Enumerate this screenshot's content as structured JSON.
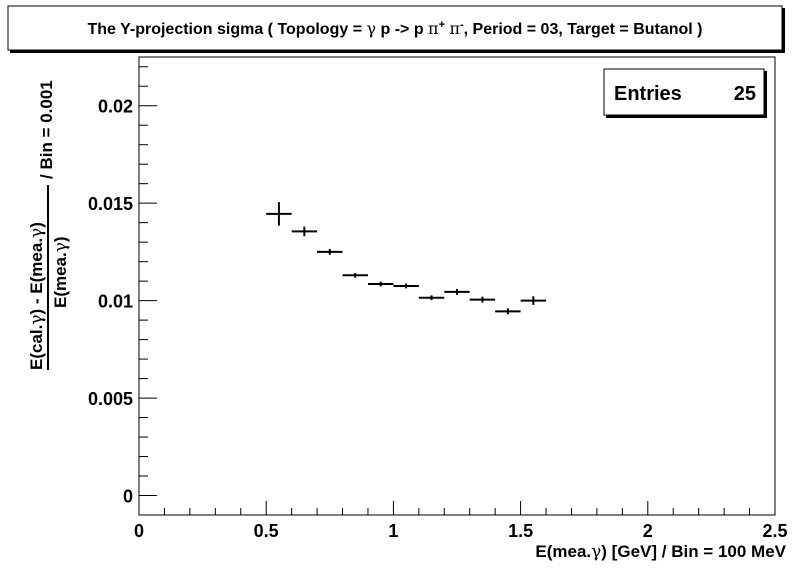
{
  "title": {
    "parts": [
      {
        "text": "The Y-projection sigma ( Topology = ",
        "symbol": false
      },
      {
        "text": "γ",
        "symbol": true
      },
      {
        "text": " p -> p ",
        "symbol": false
      },
      {
        "text": "π",
        "symbol": true
      },
      {
        "text": "+",
        "sup": true
      },
      {
        "text": " ",
        "symbol": false
      },
      {
        "text": "π",
        "symbol": true
      },
      {
        "text": "-",
        "sup": true
      },
      {
        "text": ", Period = 03, Target = Butanol )",
        "symbol": false
      }
    ]
  },
  "stats": {
    "label": "Entries",
    "value": "25"
  },
  "chart_data": {
    "type": "scatter",
    "title": "The Y-projection sigma ( Topology = γ p -> p π+ π-, Period = 03, Target = Butanol )",
    "xlabel": "E(mea. γ) [GeV] / Bin = 100 MeV",
    "ylabel": "(E(cal. γ) - E(mea. γ)) / E(mea. γ) / Bin = 0.001",
    "xlim": [
      0,
      2.5
    ],
    "ylim": [
      -0.001,
      0.0225
    ],
    "x_ticks": [
      {
        "value": 0,
        "label": "0"
      },
      {
        "value": 0.5,
        "label": "0.5"
      },
      {
        "value": 1,
        "label": "1"
      },
      {
        "value": 1.5,
        "label": "1.5"
      },
      {
        "value": 2,
        "label": "2"
      },
      {
        "value": 2.5,
        "label": "2.5"
      }
    ],
    "y_ticks": [
      {
        "value": 0,
        "label": "0"
      },
      {
        "value": 0.005,
        "label": "0.005"
      },
      {
        "value": 0.01,
        "label": "0.01"
      },
      {
        "value": 0.015,
        "label": "0.015"
      },
      {
        "value": 0.02,
        "label": "0.02"
      }
    ],
    "points": [
      {
        "x": 0.55,
        "y": 0.01445,
        "xerr": 0.05,
        "yerr": 0.0006
      },
      {
        "x": 0.65,
        "y": 0.01355,
        "xerr": 0.05,
        "yerr": 0.00025
      },
      {
        "x": 0.75,
        "y": 0.0125,
        "xerr": 0.05,
        "yerr": 0.00015
      },
      {
        "x": 0.85,
        "y": 0.0113,
        "xerr": 0.05,
        "yerr": 0.00012
      },
      {
        "x": 0.95,
        "y": 0.01085,
        "xerr": 0.05,
        "yerr": 0.00012
      },
      {
        "x": 1.05,
        "y": 0.01075,
        "xerr": 0.05,
        "yerr": 0.00012
      },
      {
        "x": 1.15,
        "y": 0.01015,
        "xerr": 0.05,
        "yerr": 0.00012
      },
      {
        "x": 1.25,
        "y": 0.01045,
        "xerr": 0.05,
        "yerr": 0.00015
      },
      {
        "x": 1.35,
        "y": 0.01005,
        "xerr": 0.05,
        "yerr": 0.00015
      },
      {
        "x": 1.45,
        "y": 0.00945,
        "xerr": 0.05,
        "yerr": 0.00015
      },
      {
        "x": 1.55,
        "y": 0.01,
        "xerr": 0.05,
        "yerr": 0.00022
      }
    ],
    "grid": false,
    "legend": "none"
  },
  "axis_titles": {
    "x": [
      {
        "text": "E(mea.",
        "symbol": false
      },
      {
        "text": "γ",
        "symbol": true
      },
      {
        "text": ") [GeV] / Bin = 100 MeV",
        "symbol": false
      }
    ],
    "y_numerator": [
      {
        "text": "E(cal.",
        "symbol": false
      },
      {
        "text": "γ",
        "symbol": true
      },
      {
        "text": ") - E(mea.",
        "symbol": false
      },
      {
        "text": "γ",
        "symbol": true
      },
      {
        "text": ")",
        "symbol": false
      }
    ],
    "y_denominator": [
      {
        "text": "E(mea.",
        "symbol": false
      },
      {
        "text": "γ",
        "symbol": true
      },
      {
        "text": ")",
        "symbol": false
      }
    ],
    "y_suffix": [
      {
        "text": "/ Bin = 0.001",
        "symbol": false
      }
    ]
  }
}
